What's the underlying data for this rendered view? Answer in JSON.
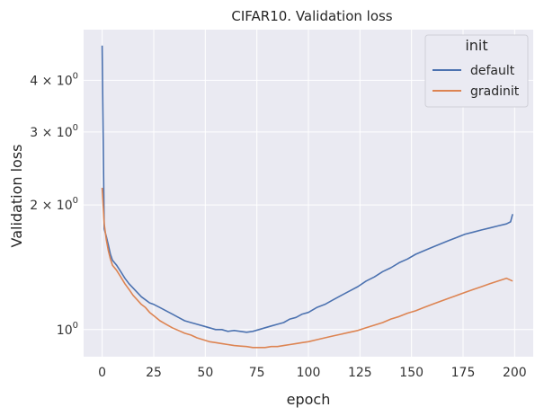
{
  "chart_data": {
    "type": "line",
    "title": "CIFAR10. Validation loss",
    "xlabel": "epoch",
    "ylabel": "Validation loss",
    "yscale": "log",
    "xlim": [
      -9,
      209
    ],
    "ylim": [
      0.86,
      5.3
    ],
    "grid": true,
    "background": "#eaeaf2",
    "x_ticks": [
      0,
      25,
      50,
      75,
      100,
      125,
      150,
      175,
      200
    ],
    "x_tick_labels": [
      "0",
      "25",
      "50",
      "75",
      "100",
      "125",
      "150",
      "175",
      "200"
    ],
    "y_ticks": [
      1,
      2,
      3,
      4
    ],
    "y_tick_labels": [
      {
        "base": "10",
        "exp": "0",
        "mult": ""
      },
      {
        "base": "10",
        "exp": "0",
        "mult": "2 × "
      },
      {
        "base": "10",
        "exp": "0",
        "mult": "3 × "
      },
      {
        "base": "10",
        "exp": "0",
        "mult": "4 × "
      }
    ],
    "legend": {
      "title": "init",
      "position": "top-right"
    },
    "series": [
      {
        "name": "default",
        "color": "#4c72b0",
        "points": [
          [
            0,
            4.85
          ],
          [
            1,
            1.75
          ],
          [
            2,
            1.68
          ],
          [
            3,
            1.6
          ],
          [
            4,
            1.52
          ],
          [
            5,
            1.47
          ],
          [
            7,
            1.43
          ],
          [
            9,
            1.38
          ],
          [
            11,
            1.33
          ],
          [
            13,
            1.29
          ],
          [
            15,
            1.26
          ],
          [
            17,
            1.23
          ],
          [
            19,
            1.2
          ],
          [
            21,
            1.18
          ],
          [
            23,
            1.16
          ],
          [
            25,
            1.15
          ],
          [
            28,
            1.13
          ],
          [
            31,
            1.11
          ],
          [
            34,
            1.09
          ],
          [
            37,
            1.07
          ],
          [
            40,
            1.05
          ],
          [
            43,
            1.04
          ],
          [
            46,
            1.03
          ],
          [
            49,
            1.02
          ],
          [
            52,
            1.01
          ],
          [
            55,
            1.0
          ],
          [
            58,
            1.0
          ],
          [
            61,
            0.99
          ],
          [
            64,
            0.995
          ],
          [
            67,
            0.99
          ],
          [
            70,
            0.985
          ],
          [
            73,
            0.99
          ],
          [
            76,
            1.0
          ],
          [
            79,
            1.01
          ],
          [
            82,
            1.02
          ],
          [
            85,
            1.03
          ],
          [
            88,
            1.04
          ],
          [
            91,
            1.06
          ],
          [
            94,
            1.07
          ],
          [
            97,
            1.09
          ],
          [
            100,
            1.1
          ],
          [
            104,
            1.13
          ],
          [
            108,
            1.15
          ],
          [
            112,
            1.18
          ],
          [
            116,
            1.21
          ],
          [
            120,
            1.24
          ],
          [
            124,
            1.27
          ],
          [
            128,
            1.31
          ],
          [
            132,
            1.34
          ],
          [
            136,
            1.38
          ],
          [
            140,
            1.41
          ],
          [
            144,
            1.45
          ],
          [
            148,
            1.48
          ],
          [
            152,
            1.52
          ],
          [
            156,
            1.55
          ],
          [
            160,
            1.58
          ],
          [
            164,
            1.61
          ],
          [
            168,
            1.64
          ],
          [
            172,
            1.67
          ],
          [
            176,
            1.7
          ],
          [
            180,
            1.72
          ],
          [
            184,
            1.74
          ],
          [
            188,
            1.76
          ],
          [
            192,
            1.78
          ],
          [
            196,
            1.8
          ],
          [
            198,
            1.82
          ],
          [
            199,
            1.9
          ]
        ]
      },
      {
        "name": "gradinit",
        "color": "#dd8452",
        "points": [
          [
            0,
            2.2
          ],
          [
            1,
            1.8
          ],
          [
            2,
            1.65
          ],
          [
            3,
            1.55
          ],
          [
            4,
            1.48
          ],
          [
            5,
            1.43
          ],
          [
            7,
            1.39
          ],
          [
            9,
            1.34
          ],
          [
            11,
            1.29
          ],
          [
            13,
            1.25
          ],
          [
            15,
            1.21
          ],
          [
            17,
            1.18
          ],
          [
            19,
            1.15
          ],
          [
            21,
            1.13
          ],
          [
            23,
            1.1
          ],
          [
            25,
            1.08
          ],
          [
            28,
            1.05
          ],
          [
            31,
            1.03
          ],
          [
            34,
            1.01
          ],
          [
            37,
            0.995
          ],
          [
            40,
            0.98
          ],
          [
            43,
            0.97
          ],
          [
            46,
            0.955
          ],
          [
            49,
            0.945
          ],
          [
            52,
            0.935
          ],
          [
            55,
            0.93
          ],
          [
            58,
            0.925
          ],
          [
            61,
            0.92
          ],
          [
            64,
            0.915
          ],
          [
            67,
            0.912
          ],
          [
            70,
            0.91
          ],
          [
            73,
            0.905
          ],
          [
            76,
            0.905
          ],
          [
            79,
            0.905
          ],
          [
            82,
            0.91
          ],
          [
            85,
            0.91
          ],
          [
            88,
            0.915
          ],
          [
            91,
            0.92
          ],
          [
            94,
            0.925
          ],
          [
            97,
            0.93
          ],
          [
            100,
            0.935
          ],
          [
            104,
            0.945
          ],
          [
            108,
            0.955
          ],
          [
            112,
            0.965
          ],
          [
            116,
            0.975
          ],
          [
            120,
            0.985
          ],
          [
            124,
            0.995
          ],
          [
            128,
            1.01
          ],
          [
            132,
            1.025
          ],
          [
            136,
            1.04
          ],
          [
            140,
            1.06
          ],
          [
            144,
            1.075
          ],
          [
            148,
            1.095
          ],
          [
            152,
            1.11
          ],
          [
            156,
            1.13
          ],
          [
            160,
            1.15
          ],
          [
            164,
            1.17
          ],
          [
            168,
            1.19
          ],
          [
            172,
            1.21
          ],
          [
            176,
            1.23
          ],
          [
            180,
            1.25
          ],
          [
            184,
            1.27
          ],
          [
            188,
            1.29
          ],
          [
            192,
            1.31
          ],
          [
            196,
            1.33
          ],
          [
            199,
            1.31
          ]
        ]
      }
    ]
  }
}
